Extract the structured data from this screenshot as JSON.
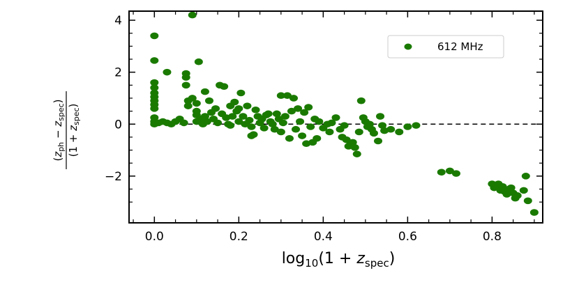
{
  "chart_data": {
    "type": "scatter",
    "title": "",
    "xlabel": "log10(1 + z_spec)",
    "ylabel": "(z_ph − z_spec) / (1 + z_spec)",
    "xlim": [
      -0.06,
      0.92
    ],
    "ylim": [
      -3.8,
      4.35
    ],
    "xticks": [
      0.0,
      0.2,
      0.4,
      0.6,
      0.8
    ],
    "xtick_labels": [
      "0.0",
      "0.2",
      "0.4",
      "0.6",
      "0.8"
    ],
    "yticks": [
      -2,
      0,
      2,
      4
    ],
    "ytick_labels": [
      "−2",
      "0",
      "2",
      "4"
    ],
    "reference_line": {
      "y": 0,
      "style": "dashed",
      "from_x": 0.0,
      "to_x": 0.92
    },
    "legend": {
      "placement": "top-right"
    },
    "colors": {
      "series": "#1a7a00"
    },
    "series": [
      {
        "name": "612 MHz",
        "points": [
          [
            0.0,
            3.4
          ],
          [
            0.0,
            2.45
          ],
          [
            0.0,
            1.6
          ],
          [
            0.0,
            1.4
          ],
          [
            0.0,
            1.2
          ],
          [
            0.0,
            1.05
          ],
          [
            0.0,
            0.9
          ],
          [
            0.0,
            0.75
          ],
          [
            0.0,
            0.6
          ],
          [
            0.0,
            0.25
          ],
          [
            0.0,
            0.1
          ],
          [
            0.0,
            0.0
          ],
          [
            0.01,
            0.05
          ],
          [
            0.03,
            2.0
          ],
          [
            0.02,
            0.1
          ],
          [
            0.03,
            0.05
          ],
          [
            0.04,
            0.0
          ],
          [
            0.05,
            0.1
          ],
          [
            0.06,
            0.2
          ],
          [
            0.07,
            0.05
          ],
          [
            0.075,
            1.95
          ],
          [
            0.075,
            1.8
          ],
          [
            0.075,
            1.5
          ],
          [
            0.08,
            0.9
          ],
          [
            0.08,
            0.7
          ],
          [
            0.09,
            4.2
          ],
          [
            0.09,
            1.0
          ],
          [
            0.1,
            0.8
          ],
          [
            0.1,
            0.5
          ],
          [
            0.1,
            0.35
          ],
          [
            0.1,
            0.1
          ],
          [
            0.105,
            2.4
          ],
          [
            0.11,
            0.2
          ],
          [
            0.115,
            0.0
          ],
          [
            0.12,
            1.25
          ],
          [
            0.12,
            0.3
          ],
          [
            0.125,
            0.1
          ],
          [
            0.13,
            0.9
          ],
          [
            0.135,
            0.45
          ],
          [
            0.14,
            0.2
          ],
          [
            0.145,
            0.6
          ],
          [
            0.15,
            0.05
          ],
          [
            0.155,
            1.5
          ],
          [
            0.16,
            0.4
          ],
          [
            0.165,
            1.45
          ],
          [
            0.17,
            0.25
          ],
          [
            0.175,
            0.0
          ],
          [
            0.18,
            0.7
          ],
          [
            0.18,
            -0.05
          ],
          [
            0.185,
            0.3
          ],
          [
            0.19,
            0.85
          ],
          [
            0.195,
            0.5
          ],
          [
            0.2,
            0.1
          ],
          [
            0.2,
            0.6
          ],
          [
            0.205,
            1.2
          ],
          [
            0.21,
            0.3
          ],
          [
            0.215,
            0.0
          ],
          [
            0.22,
            0.7
          ],
          [
            0.225,
            0.15
          ],
          [
            0.23,
            -0.1
          ],
          [
            0.23,
            -0.45
          ],
          [
            0.235,
            -0.4
          ],
          [
            0.24,
            0.55
          ],
          [
            0.245,
            0.3
          ],
          [
            0.25,
            0.05
          ],
          [
            0.255,
            0.2
          ],
          [
            0.26,
            -0.15
          ],
          [
            0.265,
            0.35
          ],
          [
            0.27,
            0.4
          ],
          [
            0.275,
            0.1
          ],
          [
            0.28,
            0.0
          ],
          [
            0.285,
            -0.2
          ],
          [
            0.29,
            0.4
          ],
          [
            0.295,
            0.2
          ],
          [
            0.3,
            1.1
          ],
          [
            0.3,
            -0.3
          ],
          [
            0.305,
            0.05
          ],
          [
            0.31,
            0.3
          ],
          [
            0.315,
            1.1
          ],
          [
            0.32,
            -0.55
          ],
          [
            0.325,
            0.5
          ],
          [
            0.33,
            1.0
          ],
          [
            0.335,
            -0.2
          ],
          [
            0.34,
            0.6
          ],
          [
            0.345,
            0.1
          ],
          [
            0.35,
            -0.45
          ],
          [
            0.355,
            0.45
          ],
          [
            0.36,
            -0.75
          ],
          [
            0.365,
            0.65
          ],
          [
            0.37,
            -0.1
          ],
          [
            0.375,
            -0.7
          ],
          [
            0.38,
            0.2
          ],
          [
            0.385,
            -0.55
          ],
          [
            0.39,
            0.1
          ],
          [
            0.4,
            -0.15
          ],
          [
            0.41,
            0.0
          ],
          [
            0.415,
            -0.3
          ],
          [
            0.42,
            0.05
          ],
          [
            0.43,
            0.25
          ],
          [
            0.44,
            -0.2
          ],
          [
            0.445,
            -0.5
          ],
          [
            0.45,
            -0.05
          ],
          [
            0.455,
            -0.6
          ],
          [
            0.46,
            -0.85
          ],
          [
            0.465,
            -0.75
          ],
          [
            0.47,
            -0.7
          ],
          [
            0.475,
            -0.9
          ],
          [
            0.48,
            -1.15
          ],
          [
            0.485,
            -0.3
          ],
          [
            0.49,
            0.9
          ],
          [
            0.495,
            0.25
          ],
          [
            0.5,
            0.1
          ],
          [
            0.505,
            -0.1
          ],
          [
            0.51,
            0.0
          ],
          [
            0.515,
            -0.2
          ],
          [
            0.52,
            -0.35
          ],
          [
            0.53,
            -0.65
          ],
          [
            0.535,
            0.3
          ],
          [
            0.54,
            -0.05
          ],
          [
            0.545,
            -0.25
          ],
          [
            0.56,
            -0.2
          ],
          [
            0.58,
            -0.3
          ],
          [
            0.6,
            -0.1
          ],
          [
            0.62,
            -0.05
          ],
          [
            0.68,
            -1.85
          ],
          [
            0.7,
            -1.8
          ],
          [
            0.715,
            -1.9
          ],
          [
            0.8,
            -2.3
          ],
          [
            0.805,
            -2.45
          ],
          [
            0.81,
            -2.35
          ],
          [
            0.815,
            -2.3
          ],
          [
            0.82,
            -2.55
          ],
          [
            0.825,
            -2.4
          ],
          [
            0.83,
            -2.6
          ],
          [
            0.835,
            -2.7
          ],
          [
            0.84,
            -2.5
          ],
          [
            0.845,
            -2.45
          ],
          [
            0.85,
            -2.65
          ],
          [
            0.855,
            -2.85
          ],
          [
            0.86,
            -2.75
          ],
          [
            0.875,
            -2.55
          ],
          [
            0.88,
            -2.0
          ],
          [
            0.885,
            -2.95
          ],
          [
            0.9,
            -3.4
          ]
        ]
      }
    ]
  }
}
